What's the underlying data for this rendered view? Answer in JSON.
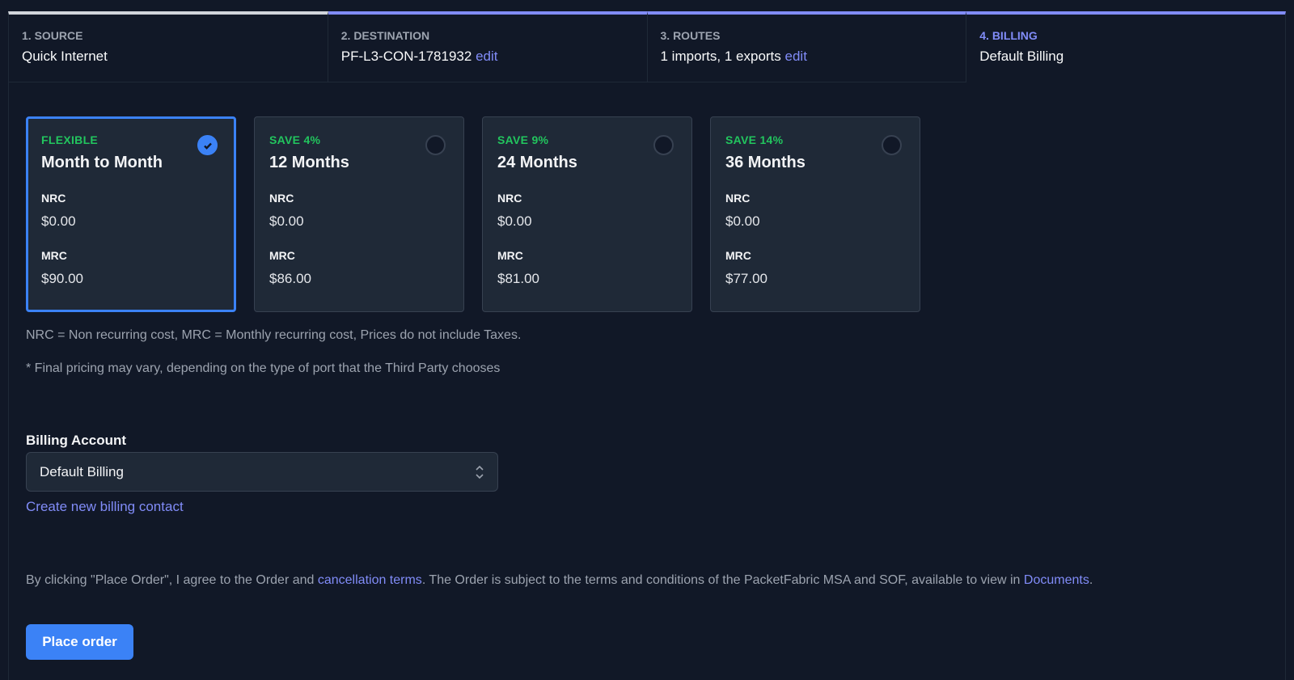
{
  "steps": [
    {
      "label": "1. Source",
      "value": "Quick Internet"
    },
    {
      "label": "2. Destination",
      "value": "PF-L3-CON-1781932",
      "edit": "edit"
    },
    {
      "label": "3. Routes",
      "value": "1 imports, 1 exports",
      "edit": "edit"
    },
    {
      "label": "4. Billing",
      "value": "Default Billing"
    }
  ],
  "plans": [
    {
      "tag": "FLEXIBLE",
      "term": "Month to Month",
      "nrc_label": "NRC",
      "nrc": "$0.00",
      "mrc_label": "MRC",
      "mrc": "$90.00",
      "selected": true
    },
    {
      "tag": "SAVE 4%",
      "term": "12 Months",
      "nrc_label": "NRC",
      "nrc": "$0.00",
      "mrc_label": "MRC",
      "mrc": "$86.00",
      "selected": false
    },
    {
      "tag": "SAVE 9%",
      "term": "24 Months",
      "nrc_label": "NRC",
      "nrc": "$0.00",
      "mrc_label": "MRC",
      "mrc": "$81.00",
      "selected": false
    },
    {
      "tag": "SAVE 14%",
      "term": "36 Months",
      "nrc_label": "NRC",
      "nrc": "$0.00",
      "mrc_label": "MRC",
      "mrc": "$77.00",
      "selected": false
    }
  ],
  "notes": {
    "legend": "NRC = Non recurring cost, MRC = Monthly recurring cost, Prices do not include Taxes.",
    "disclaimer": "* Final pricing may vary, depending on the type of port that the Third Party chooses"
  },
  "billing": {
    "label": "Billing Account",
    "selected": "Default Billing",
    "create_link": "Create new billing contact"
  },
  "terms": {
    "pre": "By clicking \"Place Order\", I agree to the Order and ",
    "link1": "cancellation terms",
    "mid": ". The Order is subject to the terms and conditions of the PacketFabric MSA and SOF, available to view in ",
    "link2": "Documents",
    "post": "."
  },
  "place_order": "Place order",
  "colors": {
    "background": "#111827",
    "card": "#1f2937",
    "accent": "#3b82f6",
    "link": "#818cf8",
    "save": "#22c55e"
  }
}
